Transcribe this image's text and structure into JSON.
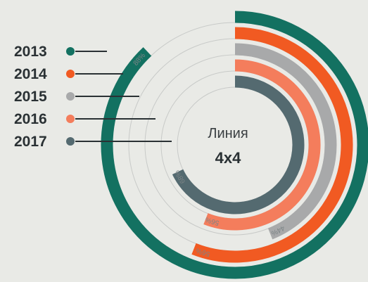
{
  "chart_data": {
    "type": "radial-bar",
    "title": "Линия",
    "subtitle": "4x4",
    "series": [
      {
        "name": "2013",
        "value": 88,
        "label": "88%",
        "color": "#137161"
      },
      {
        "name": "2014",
        "value": 56,
        "label": "56%",
        "color": "#f15a22"
      },
      {
        "name": "2015",
        "value": 44,
        "label": "44%",
        "color": "#a8a9aa"
      },
      {
        "name": "2016",
        "value": 56,
        "label": "56%",
        "color": "#f47d5c"
      },
      {
        "name": "2017",
        "value": 68,
        "label": "68%",
        "color": "#546a70"
      }
    ],
    "legend": "left"
  },
  "colors": {
    "background": "#e9eae6",
    "track": "#c8cac8",
    "legend_line": "#2a3134"
  }
}
